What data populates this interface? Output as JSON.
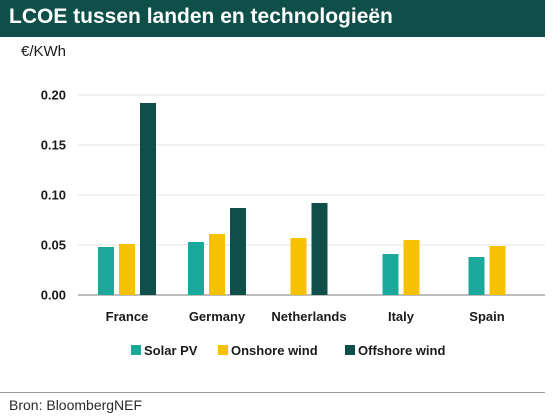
{
  "header": {
    "title": "LCOE tussen landen en technologieën"
  },
  "source": "Bron: BloombergNEF",
  "colors": {
    "header_bg": "#0e4f4a",
    "solar_pv": "#1aa89a",
    "onshore_wind": "#f5c100",
    "offshore_wind": "#0e4f4a"
  },
  "chart_data": {
    "type": "bar",
    "title": "",
    "ylabel": "€/KWh",
    "xlabel": "",
    "ylim": [
      0,
      0.2
    ],
    "yticks": [
      "0.00",
      "0.05",
      "0.10",
      "0.15",
      "0.20"
    ],
    "ytick_values": [
      0,
      0.05,
      0.1,
      0.15,
      0.2
    ],
    "grid": true,
    "legend_position": "bottom",
    "categories": [
      "France",
      "Germany",
      "Netherlands",
      "Italy",
      "Spain"
    ],
    "series": [
      {
        "name": "Solar PV",
        "color": "#1aa89a",
        "values": [
          0.048,
          0.053,
          null,
          0.041,
          0.038
        ]
      },
      {
        "name": "Onshore wind",
        "color": "#f5c100",
        "values": [
          0.051,
          0.061,
          0.057,
          0.055,
          0.049
        ]
      },
      {
        "name": "Offshore wind",
        "color": "#0e4f4a",
        "values": [
          0.192,
          0.087,
          0.092,
          null,
          null
        ]
      }
    ]
  }
}
